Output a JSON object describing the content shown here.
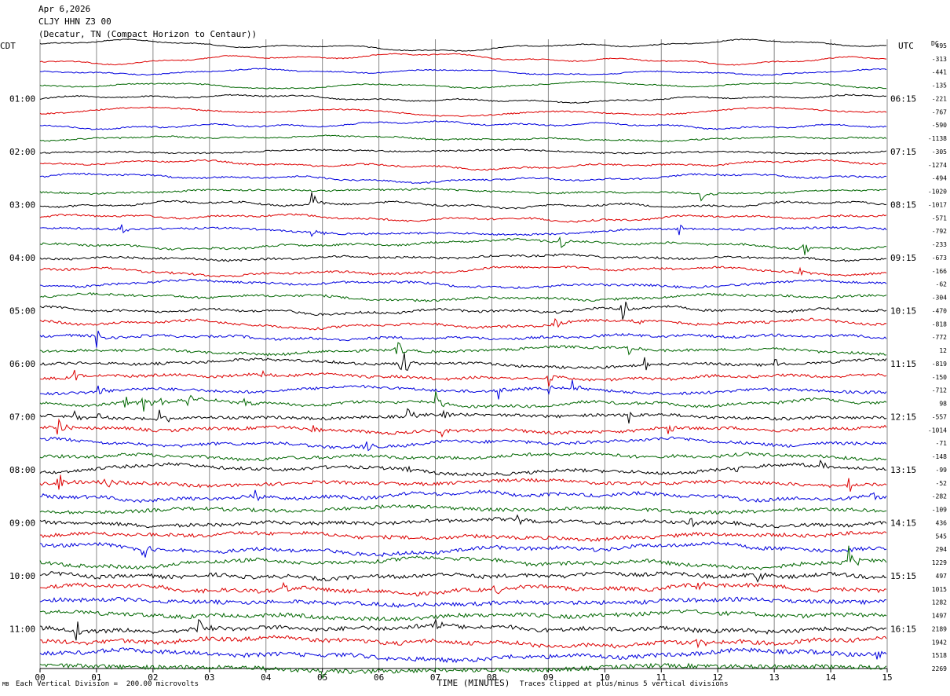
{
  "header": {
    "date": "Apr 6,2026",
    "station": "CLJY HHN Z3 00",
    "location": "(Decatur, TN (Compact Horizon to Centaur))"
  },
  "axes": {
    "left_zone": "CDT",
    "right_zone": "UTC",
    "dc_label": "DC",
    "xlabel": "TIME (MINUTES)"
  },
  "footer": {
    "scale_note": "Each Vertical Division =  200.00 microvolts",
    "clip_note": "Traces clipped at plus/minus 5 vertical divisions",
    "corner_mark": "MB"
  },
  "colors": {
    "cycle": [
      "#000000",
      "#dd0000",
      "#0000dd",
      "#006600"
    ],
    "grid": "#888888"
  },
  "chart_data": {
    "type": "line",
    "title": "",
    "traces_per_hour": 4,
    "minutes_per_trace": 15,
    "xlim": [
      0,
      15
    ],
    "x_ticks": [
      "00",
      "01",
      "02",
      "03",
      "04",
      "05",
      "06",
      "07",
      "08",
      "09",
      "10",
      "11",
      "12",
      "13",
      "14",
      "15"
    ],
    "left_hour_labels": [
      "01:00",
      "02:00",
      "03:00",
      "04:00",
      "05:00",
      "06:00",
      "07:00",
      "08:00",
      "09:00",
      "10:00",
      "11:00"
    ],
    "right_hour_labels": [
      "06:15",
      "07:15",
      "08:15",
      "09:15",
      "10:15",
      "11:15",
      "12:15",
      "13:15",
      "14:15",
      "15:15",
      "16:15"
    ],
    "dc_offsets": [
      495,
      -313,
      -441,
      -135,
      -221,
      -767,
      -590,
      -1138,
      -305,
      -1274,
      -494,
      -1020,
      -1017,
      -571,
      -792,
      -233,
      -673,
      -166,
      -62,
      -304,
      -470,
      -818,
      -772,
      12,
      -819,
      -150,
      -712,
      98,
      -557,
      -1014,
      -71,
      -148,
      -99,
      -52,
      -282,
      -109,
      436,
      545,
      294,
      1229,
      497,
      1015,
      1282,
      1497,
      2189,
      1942,
      1518,
      2269
    ],
    "events": [
      {
        "trace": 11,
        "minute": 11.7,
        "amp": 0.8
      },
      {
        "trace": 12,
        "minute": 4.8,
        "amp": 1.4
      },
      {
        "trace": 14,
        "minute": 1.4,
        "amp": 0.6
      },
      {
        "trace": 14,
        "minute": 4.8,
        "amp": 0.7
      },
      {
        "trace": 14,
        "minute": 11.3,
        "amp": 0.6
      },
      {
        "trace": 15,
        "minute": 9.2,
        "amp": 0.6
      },
      {
        "trace": 15,
        "minute": 13.5,
        "amp": 0.7
      },
      {
        "trace": 17,
        "minute": 13.4,
        "amp": 0.6
      },
      {
        "trace": 20,
        "minute": 10.3,
        "amp": 1.8
      },
      {
        "trace": 21,
        "minute": 9.1,
        "amp": 0.8
      },
      {
        "trace": 21,
        "minute": 10.5,
        "amp": 0.7
      },
      {
        "trace": 22,
        "minute": 1.0,
        "amp": 0.8
      },
      {
        "trace": 23,
        "minute": 6.3,
        "amp": 0.8
      },
      {
        "trace": 23,
        "minute": 10.4,
        "amp": 0.6
      },
      {
        "trace": 24,
        "minute": 6.4,
        "amp": 2.4
      },
      {
        "trace": 24,
        "minute": 10.7,
        "amp": 0.6
      },
      {
        "trace": 24,
        "minute": 13.0,
        "amp": 0.7
      },
      {
        "trace": 25,
        "minute": 0.6,
        "amp": 0.6
      },
      {
        "trace": 25,
        "minute": 3.9,
        "amp": 0.6
      },
      {
        "trace": 25,
        "minute": 9.0,
        "amp": 0.6
      },
      {
        "trace": 26,
        "minute": 1.0,
        "amp": 0.8
      },
      {
        "trace": 26,
        "minute": 8.1,
        "amp": 0.8
      },
      {
        "trace": 26,
        "minute": 9.0,
        "amp": 0.7
      },
      {
        "trace": 26,
        "minute": 9.4,
        "amp": 1.0
      },
      {
        "trace": 27,
        "minute": 1.5,
        "amp": 0.8
      },
      {
        "trace": 27,
        "minute": 1.8,
        "amp": 0.9
      },
      {
        "trace": 27,
        "minute": 2.1,
        "amp": 0.7
      },
      {
        "trace": 27,
        "minute": 2.6,
        "amp": 0.7
      },
      {
        "trace": 27,
        "minute": 3.6,
        "amp": 0.6
      },
      {
        "trace": 27,
        "minute": 7.0,
        "amp": 0.8
      },
      {
        "trace": 28,
        "minute": 0.6,
        "amp": 0.7
      },
      {
        "trace": 28,
        "minute": 1.0,
        "amp": 0.7
      },
      {
        "trace": 28,
        "minute": 2.1,
        "amp": 1.0
      },
      {
        "trace": 28,
        "minute": 6.5,
        "amp": 0.7
      },
      {
        "trace": 28,
        "minute": 7.1,
        "amp": 0.9
      },
      {
        "trace": 28,
        "minute": 10.4,
        "amp": 0.7
      },
      {
        "trace": 29,
        "minute": 0.3,
        "amp": 1.0
      },
      {
        "trace": 29,
        "minute": 4.8,
        "amp": 0.8
      },
      {
        "trace": 29,
        "minute": 7.1,
        "amp": 0.8
      },
      {
        "trace": 29,
        "minute": 11.1,
        "amp": 0.8
      },
      {
        "trace": 30,
        "minute": 5.7,
        "amp": 0.8
      },
      {
        "trace": 32,
        "minute": 6.4,
        "amp": 0.5
      },
      {
        "trace": 32,
        "minute": 12.3,
        "amp": 0.5
      },
      {
        "trace": 32,
        "minute": 13.8,
        "amp": 0.7
      },
      {
        "trace": 33,
        "minute": 0.3,
        "amp": 1.1
      },
      {
        "trace": 33,
        "minute": 1.1,
        "amp": 1.0
      },
      {
        "trace": 33,
        "minute": 14.3,
        "amp": 0.8
      },
      {
        "trace": 34,
        "minute": 3.8,
        "amp": 0.7
      },
      {
        "trace": 34,
        "minute": 14.7,
        "amp": 0.7
      },
      {
        "trace": 36,
        "minute": 8.4,
        "amp": 0.7
      },
      {
        "trace": 36,
        "minute": 11.5,
        "amp": 0.7
      },
      {
        "trace": 38,
        "minute": 1.8,
        "amp": 1.4
      },
      {
        "trace": 39,
        "minute": 14.3,
        "amp": 1.6
      },
      {
        "trace": 40,
        "minute": 12.7,
        "amp": 0.5
      },
      {
        "trace": 41,
        "minute": 4.3,
        "amp": 0.5
      },
      {
        "trace": 41,
        "minute": 8.0,
        "amp": 0.7
      },
      {
        "trace": 41,
        "minute": 11.6,
        "amp": 0.6
      },
      {
        "trace": 44,
        "minute": 0.6,
        "amp": 1.2
      },
      {
        "trace": 44,
        "minute": 2.8,
        "amp": 1.0
      },
      {
        "trace": 44,
        "minute": 7.0,
        "amp": 1.0
      },
      {
        "trace": 45,
        "minute": 11.6,
        "amp": 0.8
      },
      {
        "trace": 46,
        "minute": 14.8,
        "amp": 0.6
      },
      {
        "trace": 47,
        "minute": 5.0,
        "amp": 0.5
      }
    ]
  }
}
